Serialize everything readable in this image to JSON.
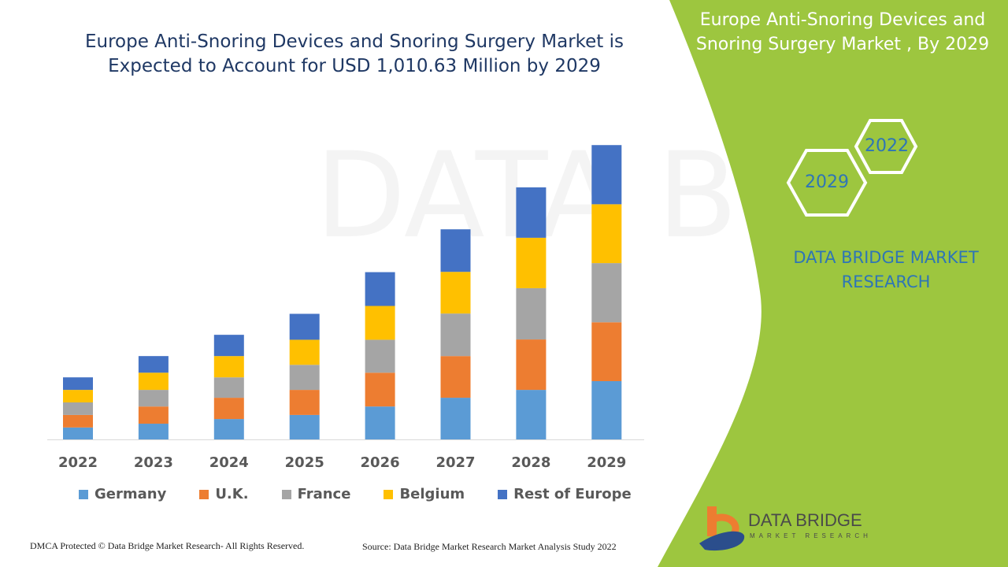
{
  "header": {
    "title_line1": "Europe Anti-Snoring Devices and Snoring Surgery Market is",
    "title_line2": "Expected to Account for USD 1,010.63 Million by 2029"
  },
  "side_panel": {
    "title_line1": "Europe Anti-Snoring Devices and",
    "title_line2": "Snoring Surgery Market , By 2029",
    "hex_year_a": "2022",
    "hex_year_b": "2029",
    "brand_line1": "DATA BRIDGE MARKET",
    "brand_line2": "RESEARCH",
    "color": "#9dc63f"
  },
  "logo": {
    "name": "DATA BRIDGE",
    "sub": "MARKET RESEARCH"
  },
  "footer": {
    "left": "DMCA Protected © Data Bridge Market Research- All Rights Reserved.",
    "right": "Source: Data Bridge Market Research Market Analysis Study 2022"
  },
  "chart_data": {
    "type": "bar",
    "stacked": true,
    "title": "Europe Anti-Snoring Devices and Snoring Surgery Market is Expected to Account for USD 1,010.63 Million by 2029",
    "xlabel": "",
    "ylabel": "",
    "ylim": [
      0,
      1010.63
    ],
    "grid": false,
    "legend_position": "bottom",
    "categories": [
      "2022",
      "2023",
      "2024",
      "2025",
      "2026",
      "2027",
      "2028",
      "2029"
    ],
    "series": [
      {
        "name": "Germany",
        "color": "#5b9bd5",
        "values": [
          41,
          54,
          70,
          84,
          113,
          143,
          170,
          200
        ]
      },
      {
        "name": "U.K.",
        "color": "#ed7d31",
        "values": [
          43,
          59,
          73,
          86,
          116,
          143,
          173,
          202
        ]
      },
      {
        "name": "France",
        "color": "#a5a5a5",
        "values": [
          43,
          57,
          70,
          86,
          113,
          146,
          176,
          203
        ]
      },
      {
        "name": "Belgium",
        "color": "#ffc000",
        "values": [
          43,
          59,
          73,
          86,
          116,
          143,
          173,
          202
        ]
      },
      {
        "name": "Rest of Europe",
        "color": "#4472c4",
        "values": [
          43,
          57,
          73,
          89,
          116,
          146,
          173,
          203
        ]
      }
    ]
  }
}
